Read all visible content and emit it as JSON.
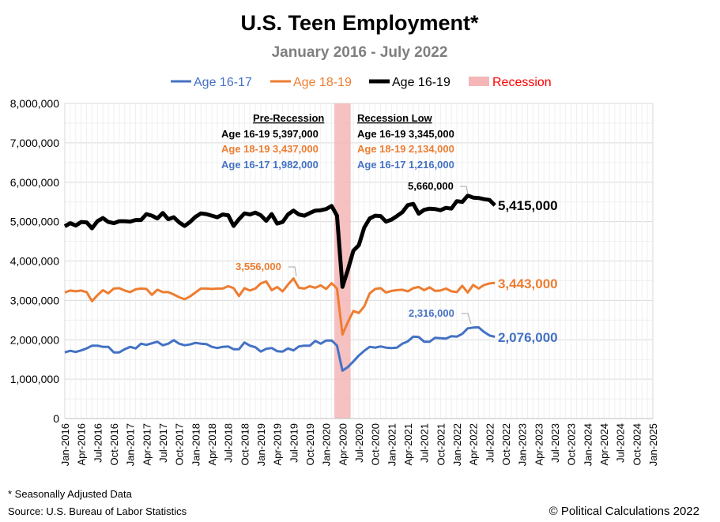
{
  "chart_data": {
    "type": "line",
    "title": "U.S. Teen Employment*",
    "subtitle": "January 2016 - July 2022",
    "ylim": [
      0,
      8000000
    ],
    "y_ticks": [
      "0",
      "1,000,000",
      "2,000,000",
      "3,000,000",
      "4,000,000",
      "5,000,000",
      "6,000,000",
      "7,000,000",
      "8,000,000"
    ],
    "x_ticks": [
      "Jan-2016",
      "Apr-2016",
      "Jul-2016",
      "Oct-2016",
      "Jan-2017",
      "Apr-2017",
      "Jul-2017",
      "Oct-2017",
      "Jan-2018",
      "Apr-2018",
      "Jul-2018",
      "Oct-2018",
      "Jan-2019",
      "Apr-2019",
      "Jul-2019",
      "Oct-2019",
      "Jan-2020",
      "Apr-2020",
      "Jul-2020",
      "Oct-2020",
      "Jan-2021",
      "Apr-2021",
      "Jul-2021",
      "Oct-2021",
      "Jan-2022",
      "Apr-2022",
      "Jul-2022",
      "Oct-2022",
      "Jan-2023",
      "Apr-2023",
      "Jul-2023",
      "Oct-2023",
      "Jan-2024",
      "Apr-2024",
      "Jul-2024",
      "Oct-2024",
      "Jan-2025"
    ],
    "x_range_months": [
      0,
      108
    ],
    "recession": {
      "label": "Recession",
      "start_month": 50,
      "end_month": 52
    },
    "legend": [
      {
        "label": "Age 16-17",
        "color": "#4472C4"
      },
      {
        "label": "Age 18-19",
        "color": "#ED7D31"
      },
      {
        "label": "Age 16-19",
        "color": "#000000"
      },
      {
        "label": "Recession",
        "color": "#FF0000"
      }
    ],
    "series": [
      {
        "name": "Age 16-17",
        "color": "#4472C4",
        "values": [
          1680000,
          1720000,
          1690000,
          1730000,
          1780000,
          1850000,
          1850000,
          1820000,
          1820000,
          1680000,
          1680000,
          1760000,
          1820000,
          1780000,
          1900000,
          1870000,
          1910000,
          1950000,
          1860000,
          1900000,
          1990000,
          1900000,
          1860000,
          1880000,
          1920000,
          1900000,
          1890000,
          1820000,
          1790000,
          1820000,
          1830000,
          1760000,
          1760000,
          1930000,
          1850000,
          1810000,
          1700000,
          1770000,
          1790000,
          1710000,
          1700000,
          1780000,
          1730000,
          1830000,
          1850000,
          1850000,
          1970000,
          1900000,
          1980000,
          1982000,
          1850000,
          1216000,
          1310000,
          1450000,
          1600000,
          1720000,
          1820000,
          1800000,
          1830000,
          1800000,
          1790000,
          1800000,
          1900000,
          1960000,
          2080000,
          2070000,
          1950000,
          1950000,
          2050000,
          2040000,
          2030000,
          2090000,
          2080000,
          2150000,
          2290000,
          2310000,
          2316000,
          2200000,
          2110000,
          2076000
        ]
      },
      {
        "name": "Age 18-19",
        "color": "#ED7D31",
        "values": [
          3200000,
          3250000,
          3230000,
          3250000,
          3210000,
          2980000,
          3130000,
          3260000,
          3180000,
          3300000,
          3310000,
          3250000,
          3210000,
          3280000,
          3300000,
          3290000,
          3140000,
          3270000,
          3210000,
          3210000,
          3150000,
          3080000,
          3030000,
          3100000,
          3200000,
          3300000,
          3300000,
          3290000,
          3300000,
          3300000,
          3360000,
          3310000,
          3110000,
          3310000,
          3250000,
          3300000,
          3430000,
          3480000,
          3260000,
          3340000,
          3230000,
          3400000,
          3556000,
          3320000,
          3300000,
          3360000,
          3320000,
          3380000,
          3290000,
          3437000,
          3300000,
          2134000,
          2450000,
          2730000,
          2680000,
          2850000,
          3180000,
          3290000,
          3310000,
          3200000,
          3240000,
          3260000,
          3270000,
          3230000,
          3310000,
          3340000,
          3260000,
          3330000,
          3240000,
          3250000,
          3300000,
          3230000,
          3210000,
          3370000,
          3200000,
          3390000,
          3300000,
          3390000,
          3430000,
          3443000
        ]
      },
      {
        "name": "Age 16-19",
        "color": "#000000",
        "values": [
          4880000,
          4960000,
          4900000,
          4990000,
          4980000,
          4830000,
          5010000,
          5090000,
          4990000,
          4960000,
          5010000,
          5010000,
          5000000,
          5040000,
          5040000,
          5190000,
          5150000,
          5080000,
          5220000,
          5060000,
          5110000,
          4980000,
          4890000,
          4990000,
          5120000,
          5210000,
          5190000,
          5150000,
          5110000,
          5180000,
          5160000,
          4890000,
          5060000,
          5210000,
          5180000,
          5230000,
          5160000,
          5020000,
          5190000,
          4950000,
          4990000,
          5180000,
          5280000,
          5180000,
          5150000,
          5220000,
          5280000,
          5290000,
          5320000,
          5397000,
          5150000,
          3345000,
          3780000,
          4260000,
          4400000,
          4850000,
          5080000,
          5150000,
          5140000,
          5000000,
          5050000,
          5140000,
          5240000,
          5420000,
          5450000,
          5200000,
          5300000,
          5330000,
          5320000,
          5290000,
          5350000,
          5330000,
          5520000,
          5500000,
          5660000,
          5610000,
          5600000,
          5570000,
          5550000,
          5415000
        ]
      }
    ],
    "end_labels": {
      "age_16_19": "5,415,000",
      "age_18_19": "3,443,000",
      "age_16_17": "2,076,000"
    },
    "peak_labels": {
      "age_16_19": "5,660,000",
      "age_18_19": "3,556,000",
      "age_16_17": "2,316,000"
    },
    "pre_recession": {
      "heading": "Pre-Recession",
      "lines": [
        {
          "text": "Age 16-19 5,397,000",
          "color": "#000000"
        },
        {
          "text": "Age 18-19 3,437,000",
          "color": "#ED7D31"
        },
        {
          "text": "Age 16-17 1,982,000",
          "color": "#4472C4"
        }
      ]
    },
    "recession_low": {
      "heading": "Recession Low",
      "lines": [
        {
          "text": "Age 16-19 3,345,000",
          "color": "#000000"
        },
        {
          "text": "Age 18-19 2,134,000",
          "color": "#ED7D31"
        },
        {
          "text": "Age 16-17 1,216,000",
          "color": "#4472C4"
        }
      ]
    }
  },
  "footer": {
    "note": "* Seasonally Adjusted Data",
    "source": "Source: U.S. Bureau of Labor Statistics",
    "copyright": "© Political Calculations 2022"
  }
}
